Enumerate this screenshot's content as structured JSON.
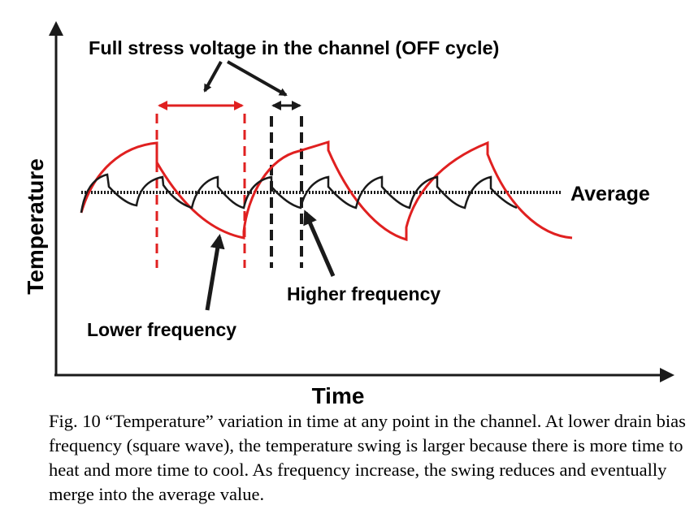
{
  "labels": {
    "top_annotation": "Full stress voltage in the channel (OFF cycle)",
    "average": "Average",
    "higher_frequency": "Higher frequency",
    "lower_frequency": "Lower frequency",
    "y_axis": "Temperature",
    "x_axis": "Time"
  },
  "caption": "Fig. 10 “Temperature” variation in time at any point in the channel. At lower drain bias frequency (square wave), the temperature swing is larger because there is more time to heat and more time to cool. As frequency increase, the swing reduces and eventually merge into the average value.",
  "colors": {
    "low_frequency_curve": "#e02020",
    "high_frequency_curve": "#1a1a1a",
    "axes": "#1a1a1a"
  }
}
